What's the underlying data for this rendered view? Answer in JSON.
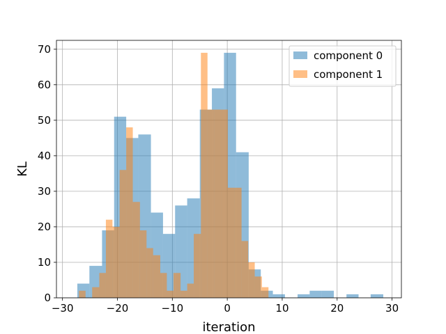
{
  "chart_data": {
    "type": "bar",
    "subtype": "histogram",
    "xlabel": "iteration",
    "ylabel": "KL",
    "xlim": [
      -31.1,
      31.7
    ],
    "ylim": [
      0,
      72.5
    ],
    "xticks": [
      -30,
      -20,
      -10,
      0,
      10,
      20,
      30
    ],
    "yticks": [
      0,
      10,
      20,
      30,
      40,
      50,
      60,
      70
    ],
    "xtick_labels": [
      "−30",
      "−20",
      "−10",
      "0",
      "10",
      "20",
      "30"
    ],
    "ytick_labels": [
      "0",
      "10",
      "20",
      "30",
      "40",
      "50",
      "60",
      "70"
    ],
    "grid": true,
    "legend_position": "top-right",
    "series": [
      {
        "name": "component 0",
        "color": "#1f77b4",
        "alpha": 0.5,
        "bins": [
          {
            "x0": -27.3,
            "x1": -25.1,
            "count": 4
          },
          {
            "x0": -25.1,
            "x1": -22.8,
            "count": 9
          },
          {
            "x0": -22.8,
            "x1": -20.6,
            "count": 19
          },
          {
            "x0": -20.6,
            "x1": -18.4,
            "count": 51
          },
          {
            "x0": -18.4,
            "x1": -16.2,
            "count": 45
          },
          {
            "x0": -16.2,
            "x1": -13.9,
            "count": 46
          },
          {
            "x0": -13.9,
            "x1": -11.7,
            "count": 24
          },
          {
            "x0": -11.7,
            "x1": -9.5,
            "count": 18
          },
          {
            "x0": -9.5,
            "x1": -7.3,
            "count": 26
          },
          {
            "x0": -7.3,
            "x1": -5.0,
            "count": 28
          },
          {
            "x0": -5.0,
            "x1": -2.8,
            "count": 53
          },
          {
            "x0": -2.8,
            "x1": -0.6,
            "count": 59
          },
          {
            "x0": -0.6,
            "x1": 1.6,
            "count": 69
          },
          {
            "x0": 1.6,
            "x1": 3.9,
            "count": 41
          },
          {
            "x0": 3.9,
            "x1": 6.1,
            "count": 8
          },
          {
            "x0": 6.1,
            "x1": 8.3,
            "count": 2
          },
          {
            "x0": 8.3,
            "x1": 10.5,
            "count": 1
          },
          {
            "x0": 10.5,
            "x1": 12.8,
            "count": 0
          },
          {
            "x0": 12.8,
            "x1": 15.0,
            "count": 1
          },
          {
            "x0": 15.0,
            "x1": 17.2,
            "count": 2
          },
          {
            "x0": 17.2,
            "x1": 19.4,
            "count": 2
          },
          {
            "x0": 19.4,
            "x1": 21.7,
            "count": 0
          },
          {
            "x0": 21.7,
            "x1": 23.9,
            "count": 1
          },
          {
            "x0": 23.9,
            "x1": 26.1,
            "count": 0
          },
          {
            "x0": 26.1,
            "x1": 28.4,
            "count": 1
          }
        ]
      },
      {
        "name": "component 1",
        "color": "#ff7f0e",
        "alpha": 0.5,
        "bins": [
          {
            "x0": -27.0,
            "x1": -25.8,
            "count": 2
          },
          {
            "x0": -25.8,
            "x1": -24.6,
            "count": 0
          },
          {
            "x0": -24.6,
            "x1": -23.3,
            "count": 3
          },
          {
            "x0": -23.3,
            "x1": -22.1,
            "count": 7
          },
          {
            "x0": -22.1,
            "x1": -20.9,
            "count": 22
          },
          {
            "x0": -20.9,
            "x1": -19.6,
            "count": 20
          },
          {
            "x0": -19.6,
            "x1": -18.4,
            "count": 36
          },
          {
            "x0": -18.4,
            "x1": -17.2,
            "count": 48
          },
          {
            "x0": -17.2,
            "x1": -15.9,
            "count": 27
          },
          {
            "x0": -15.9,
            "x1": -14.7,
            "count": 19
          },
          {
            "x0": -14.7,
            "x1": -13.5,
            "count": 14
          },
          {
            "x0": -13.5,
            "x1": -12.2,
            "count": 12
          },
          {
            "x0": -12.2,
            "x1": -11.0,
            "count": 7
          },
          {
            "x0": -11.0,
            "x1": -9.8,
            "count": 2
          },
          {
            "x0": -9.8,
            "x1": -8.5,
            "count": 7
          },
          {
            "x0": -8.5,
            "x1": -7.3,
            "count": 2
          },
          {
            "x0": -7.3,
            "x1": -6.1,
            "count": 4
          },
          {
            "x0": -6.1,
            "x1": -4.8,
            "count": 18
          },
          {
            "x0": -4.8,
            "x1": -3.6,
            "count": 69
          },
          {
            "x0": -3.6,
            "x1": -2.4,
            "count": 53
          },
          {
            "x0": -2.4,
            "x1": -1.1,
            "count": 53
          },
          {
            "x0": -1.1,
            "x1": 0.1,
            "count": 53
          },
          {
            "x0": 0.1,
            "x1": 1.3,
            "count": 31
          },
          {
            "x0": 1.3,
            "x1": 2.6,
            "count": 31
          },
          {
            "x0": 2.6,
            "x1": 3.8,
            "count": 16
          },
          {
            "x0": 3.8,
            "x1": 5.0,
            "count": 10
          },
          {
            "x0": 5.0,
            "x1": 6.3,
            "count": 6
          },
          {
            "x0": 6.3,
            "x1": 7.5,
            "count": 3
          }
        ]
      }
    ]
  }
}
